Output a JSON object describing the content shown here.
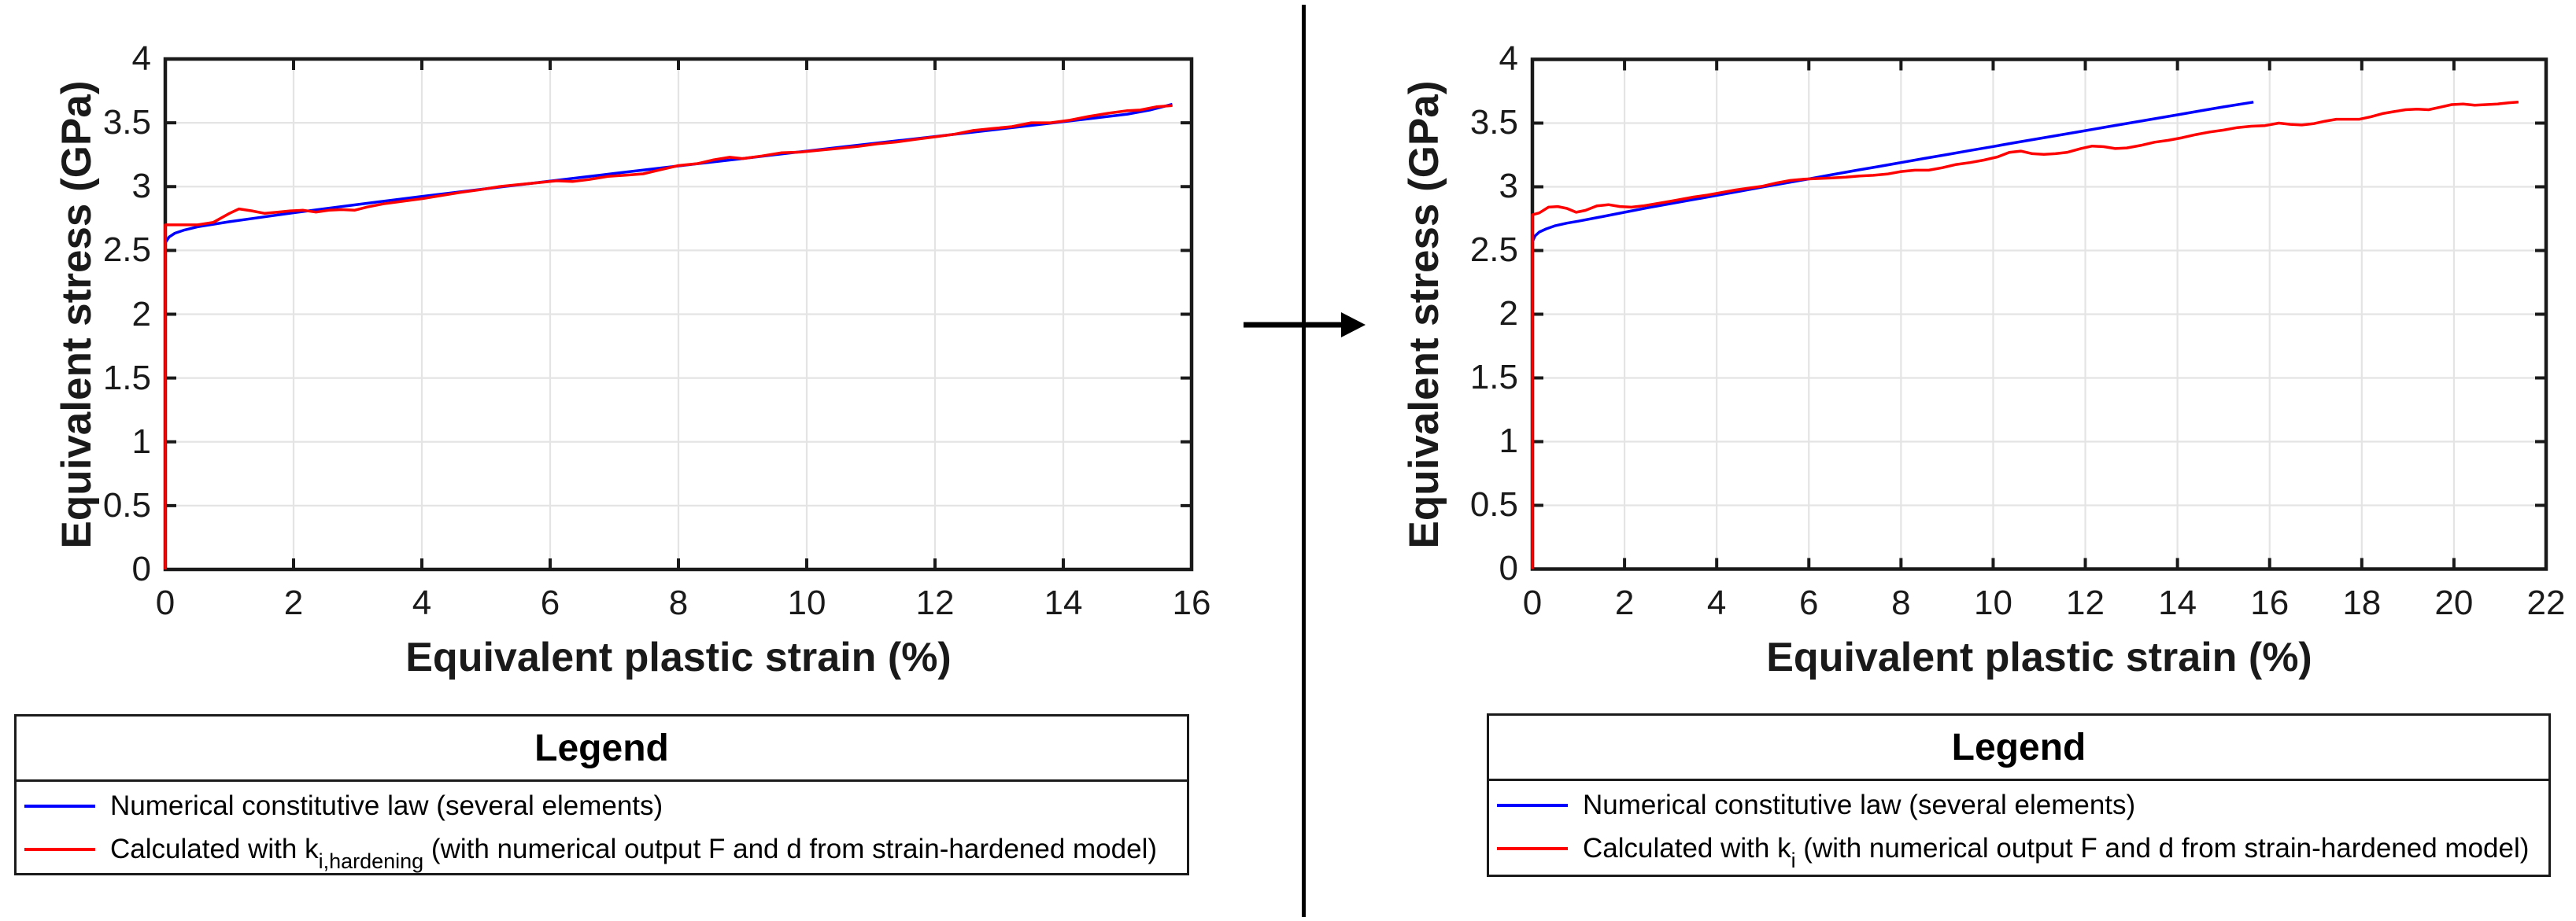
{
  "figure": {
    "transition_arrow_direction": "right"
  },
  "chart_data": [
    {
      "type": "line",
      "xlabel": "Equivalent plastic strain (%)",
      "ylabel": "Equivalent stress (GPa)",
      "xlim": [
        0,
        16
      ],
      "ylim": [
        0,
        4
      ],
      "grid": true,
      "x_ticks": [
        0,
        2,
        4,
        6,
        8,
        10,
        12,
        14,
        16
      ],
      "x_tick_labels": [
        "0",
        "2",
        "4",
        "6",
        "8",
        "10",
        "12",
        "14",
        "16"
      ],
      "y_ticks": [
        0,
        0.5,
        1,
        1.5,
        2,
        2.5,
        3,
        3.5,
        4
      ],
      "y_tick_labels": [
        "0",
        "0.5",
        "1",
        "1.5",
        "2",
        "2.5",
        "3",
        "3.5",
        "4"
      ],
      "colors": {
        "axis": "#1a1a1a",
        "grid": "#e4e4e4"
      },
      "series": [
        {
          "name": "Numerical constitutive law (several elements)",
          "color": "#0000ff",
          "points": [
            [
              0,
              2.56
            ],
            [
              0.06,
              2.605
            ],
            [
              0.15,
              2.635
            ],
            [
              0.3,
              2.66
            ],
            [
              0.5,
              2.685
            ],
            [
              0.75,
              2.705
            ],
            [
              1,
              2.725
            ],
            [
              1.5,
              2.76
            ],
            [
              2,
              2.795
            ],
            [
              2.5,
              2.828
            ],
            [
              3,
              2.86
            ],
            [
              3.5,
              2.892
            ],
            [
              4,
              2.923
            ],
            [
              4.5,
              2.953
            ],
            [
              5,
              2.983
            ],
            [
              5.5,
              3.013
            ],
            [
              6,
              3.043
            ],
            [
              6.5,
              3.073
            ],
            [
              7,
              3.103
            ],
            [
              7.5,
              3.133
            ],
            [
              8,
              3.162
            ],
            [
              8.5,
              3.191
            ],
            [
              9,
              3.22
            ],
            [
              9.5,
              3.249
            ],
            [
              10,
              3.278
            ],
            [
              10.5,
              3.307
            ],
            [
              11,
              3.336
            ],
            [
              11.5,
              3.364
            ],
            [
              12,
              3.392
            ],
            [
              12.5,
              3.421
            ],
            [
              13,
              3.45
            ],
            [
              13.5,
              3.479
            ],
            [
              14,
              3.508
            ],
            [
              14.5,
              3.538
            ],
            [
              15,
              3.568
            ],
            [
              15.35,
              3.6
            ],
            [
              15.7,
              3.645
            ]
          ]
        },
        {
          "name": "Calculated with k_i,hardening (with numerical output F and d from strain-hardened model)",
          "color": "#ff0000",
          "points": [
            [
              0,
              0
            ],
            [
              0,
              2.7
            ],
            [
              0.25,
              2.7
            ],
            [
              0.5,
              2.7
            ],
            [
              0.75,
              2.72
            ],
            [
              1,
              2.79
            ],
            [
              1.15,
              2.825
            ],
            [
              1.35,
              2.81
            ],
            [
              1.55,
              2.79
            ],
            [
              1.75,
              2.8
            ],
            [
              1.95,
              2.81
            ],
            [
              2.15,
              2.815
            ],
            [
              2.35,
              2.8
            ],
            [
              2.55,
              2.815
            ],
            [
              2.75,
              2.82
            ],
            [
              2.95,
              2.815
            ],
            [
              3.15,
              2.84
            ],
            [
              3.4,
              2.865
            ],
            [
              3.7,
              2.885
            ],
            [
              4,
              2.905
            ],
            [
              4.3,
              2.93
            ],
            [
              4.6,
              2.955
            ],
            [
              4.9,
              2.975
            ],
            [
              5.2,
              3
            ],
            [
              5.5,
              3.015
            ],
            [
              5.8,
              3.03
            ],
            [
              6.1,
              3.045
            ],
            [
              6.35,
              3.04
            ],
            [
              6.6,
              3.055
            ],
            [
              6.9,
              3.08
            ],
            [
              7.2,
              3.09
            ],
            [
              7.45,
              3.1
            ],
            [
              7.7,
              3.13
            ],
            [
              8,
              3.165
            ],
            [
              8.3,
              3.18
            ],
            [
              8.55,
              3.21
            ],
            [
              8.8,
              3.23
            ],
            [
              9,
              3.22
            ],
            [
              9.3,
              3.24
            ],
            [
              9.6,
              3.265
            ],
            [
              9.9,
              3.27
            ],
            [
              10.2,
              3.285
            ],
            [
              10.5,
              3.3
            ],
            [
              10.8,
              3.315
            ],
            [
              11.1,
              3.335
            ],
            [
              11.4,
              3.35
            ],
            [
              11.7,
              3.37
            ],
            [
              12,
              3.39
            ],
            [
              12.3,
              3.41
            ],
            [
              12.6,
              3.44
            ],
            [
              12.9,
              3.455
            ],
            [
              13.2,
              3.47
            ],
            [
              13.5,
              3.5
            ],
            [
              13.8,
              3.5
            ],
            [
              14.1,
              3.52
            ],
            [
              14.4,
              3.55
            ],
            [
              14.7,
              3.575
            ],
            [
              15,
              3.595
            ],
            [
              15.2,
              3.6
            ],
            [
              15.45,
              3.625
            ],
            [
              15.7,
              3.635
            ]
          ]
        }
      ],
      "legend": {
        "title": "Legend",
        "entries": [
          {
            "color": "#0000ff",
            "label": "Numerical constitutive law (several elements)"
          },
          {
            "color": "#ff0000",
            "label_prefix": "Calculated with k",
            "label_sub": "i,hardening",
            "label_suffix": " (with numerical output F and d from strain-hardened model)"
          }
        ]
      }
    },
    {
      "type": "line",
      "xlabel": "Equivalent plastic strain (%)",
      "ylabel": "Equivalent stress (GPa)",
      "xlim": [
        0,
        22
      ],
      "ylim": [
        0,
        4
      ],
      "grid": true,
      "x_ticks": [
        0,
        2,
        4,
        6,
        8,
        10,
        12,
        14,
        16,
        18,
        20,
        22
      ],
      "x_tick_labels": [
        "0",
        "2",
        "4",
        "6",
        "8",
        "10",
        "12",
        "14",
        "16",
        "18",
        "20",
        "22"
      ],
      "y_ticks": [
        0,
        0.5,
        1,
        1.5,
        2,
        2.5,
        3,
        3.5,
        4
      ],
      "y_tick_labels": [
        "0",
        "0.5",
        "1",
        "1.5",
        "2",
        "2.5",
        "3",
        "3.5",
        "4"
      ],
      "colors": {
        "axis": "#1a1a1a",
        "grid": "#e4e4e4"
      },
      "series": [
        {
          "name": "Numerical constitutive law (several elements)",
          "color": "#0000ff",
          "points": [
            [
              0,
              2.57
            ],
            [
              0.06,
              2.615
            ],
            [
              0.15,
              2.645
            ],
            [
              0.3,
              2.67
            ],
            [
              0.5,
              2.695
            ],
            [
              0.75,
              2.715
            ],
            [
              1,
              2.73
            ],
            [
              1.5,
              2.765
            ],
            [
              2,
              2.8
            ],
            [
              2.5,
              2.835
            ],
            [
              3,
              2.868
            ],
            [
              3.5,
              2.9
            ],
            [
              4,
              2.933
            ],
            [
              4.5,
              2.965
            ],
            [
              5,
              2.998
            ],
            [
              5.5,
              3.03
            ],
            [
              6,
              3.062
            ],
            [
              6.5,
              3.095
            ],
            [
              7,
              3.127
            ],
            [
              7.5,
              3.158
            ],
            [
              8,
              3.19
            ],
            [
              8.5,
              3.222
            ],
            [
              9,
              3.253
            ],
            [
              9.5,
              3.285
            ],
            [
              10,
              3.316
            ],
            [
              10.5,
              3.348
            ],
            [
              11,
              3.379
            ],
            [
              11.5,
              3.41
            ],
            [
              12,
              3.441
            ],
            [
              12.5,
              3.472
            ],
            [
              13,
              3.503
            ],
            [
              13.5,
              3.534
            ],
            [
              14,
              3.565
            ],
            [
              14.5,
              3.596
            ],
            [
              15,
              3.627
            ],
            [
              15.65,
              3.665
            ]
          ]
        },
        {
          "name": "Calculated with k_i (with numerical output F and d from strain-hardened model)",
          "color": "#ff0000",
          "points": [
            [
              0,
              0
            ],
            [
              0,
              2.78
            ],
            [
              0.15,
              2.795
            ],
            [
              0.35,
              2.84
            ],
            [
              0.55,
              2.845
            ],
            [
              0.75,
              2.83
            ],
            [
              0.95,
              2.8
            ],
            [
              1.15,
              2.815
            ],
            [
              1.4,
              2.85
            ],
            [
              1.65,
              2.86
            ],
            [
              1.9,
              2.845
            ],
            [
              2.15,
              2.84
            ],
            [
              2.4,
              2.85
            ],
            [
              2.65,
              2.865
            ],
            [
              2.9,
              2.88
            ],
            [
              3.2,
              2.9
            ],
            [
              3.5,
              2.92
            ],
            [
              3.8,
              2.935
            ],
            [
              4.1,
              2.955
            ],
            [
              4.4,
              2.975
            ],
            [
              4.7,
              2.99
            ],
            [
              5,
              3.005
            ],
            [
              5.3,
              3.03
            ],
            [
              5.6,
              3.05
            ],
            [
              5.9,
              3.06
            ],
            [
              6.2,
              3.065
            ],
            [
              6.5,
              3.07
            ],
            [
              6.8,
              3.075
            ],
            [
              7.1,
              3.085
            ],
            [
              7.4,
              3.09
            ],
            [
              7.7,
              3.1
            ],
            [
              8,
              3.12
            ],
            [
              8.3,
              3.13
            ],
            [
              8.6,
              3.13
            ],
            [
              8.9,
              3.15
            ],
            [
              9.2,
              3.175
            ],
            [
              9.5,
              3.19
            ],
            [
              9.8,
              3.21
            ],
            [
              10.1,
              3.235
            ],
            [
              10.35,
              3.27
            ],
            [
              10.6,
              3.28
            ],
            [
              10.85,
              3.26
            ],
            [
              11.1,
              3.255
            ],
            [
              11.35,
              3.26
            ],
            [
              11.6,
              3.27
            ],
            [
              11.9,
              3.3
            ],
            [
              12.15,
              3.32
            ],
            [
              12.4,
              3.315
            ],
            [
              12.65,
              3.3
            ],
            [
              12.9,
              3.305
            ],
            [
              13.2,
              3.325
            ],
            [
              13.5,
              3.35
            ],
            [
              13.8,
              3.365
            ],
            [
              14.1,
              3.385
            ],
            [
              14.4,
              3.41
            ],
            [
              14.7,
              3.43
            ],
            [
              15,
              3.445
            ],
            [
              15.3,
              3.465
            ],
            [
              15.6,
              3.475
            ],
            [
              15.9,
              3.48
            ],
            [
              16.2,
              3.5
            ],
            [
              16.45,
              3.49
            ],
            [
              16.7,
              3.485
            ],
            [
              16.95,
              3.495
            ],
            [
              17.2,
              3.515
            ],
            [
              17.45,
              3.53
            ],
            [
              17.7,
              3.53
            ],
            [
              17.95,
              3.53
            ],
            [
              18.2,
              3.55
            ],
            [
              18.45,
              3.575
            ],
            [
              18.7,
              3.59
            ],
            [
              18.95,
              3.605
            ],
            [
              19.2,
              3.61
            ],
            [
              19.45,
              3.605
            ],
            [
              19.7,
              3.625
            ],
            [
              19.95,
              3.645
            ],
            [
              20.2,
              3.65
            ],
            [
              20.45,
              3.64
            ],
            [
              20.7,
              3.645
            ],
            [
              20.95,
              3.65
            ],
            [
              21.2,
              3.66
            ],
            [
              21.4,
              3.665
            ]
          ]
        }
      ],
      "legend": {
        "title": "Legend",
        "entries": [
          {
            "color": "#0000ff",
            "label": "Numerical constitutive law (several elements)"
          },
          {
            "color": "#ff0000",
            "label_prefix": "Calculated with k",
            "label_sub": "i",
            "label_suffix": " (with numerical output F and d from strain-hardened model)"
          }
        ]
      }
    }
  ]
}
